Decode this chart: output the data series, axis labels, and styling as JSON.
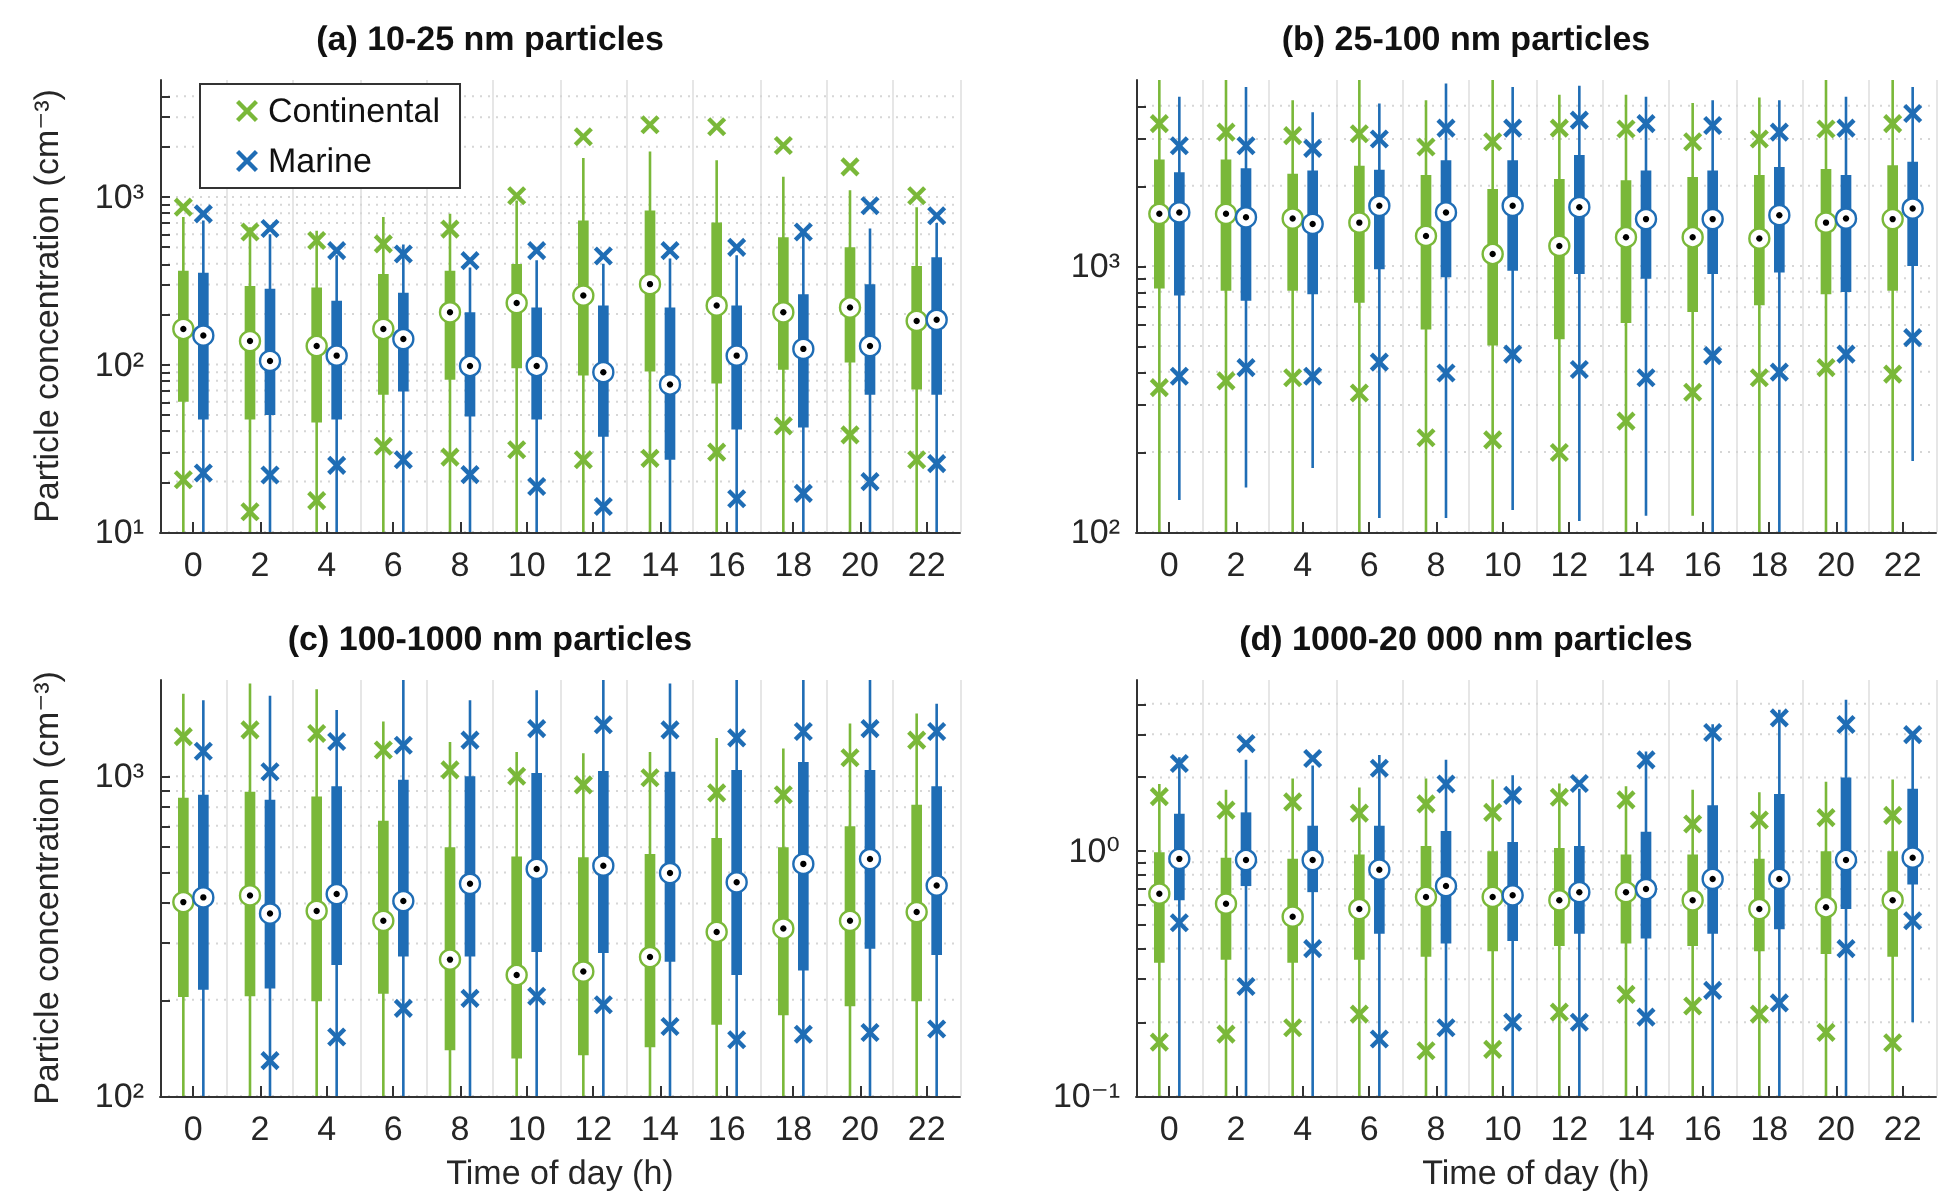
{
  "chart_data": [
    {
      "type": "box",
      "title": "(a) 10-25 nm particles",
      "ylabel": "Particle concentration (cm⁻³)",
      "categories": [
        "0",
        "2",
        "4",
        "6",
        "8",
        "10",
        "12",
        "14",
        "16",
        "18",
        "20",
        "22"
      ],
      "log": true,
      "grid": true,
      "legend": "top left",
      "marker": "cross",
      "ylim": [
        10,
        5000
      ],
      "yticks": [
        {
          "value": 10,
          "label": "10¹"
        },
        {
          "value": 20,
          "label": null
        },
        {
          "value": 30,
          "label": null
        },
        {
          "value": 40,
          "label": null
        },
        {
          "value": 50,
          "label": null
        },
        {
          "value": 60,
          "label": null
        },
        {
          "value": 70,
          "label": null
        },
        {
          "value": 80,
          "label": null
        },
        {
          "value": 90,
          "label": null
        },
        {
          "value": 100,
          "label": "10²"
        },
        {
          "value": 200,
          "label": null
        },
        {
          "value": 300,
          "label": null
        },
        {
          "value": 400,
          "label": null
        },
        {
          "value": 500,
          "label": null
        },
        {
          "value": 600,
          "label": null
        },
        {
          "value": 700,
          "label": null
        },
        {
          "value": 800,
          "label": null
        },
        {
          "value": 900,
          "label": null
        },
        {
          "value": 1000,
          "label": "10³"
        },
        {
          "value": 2000,
          "label": null
        },
        {
          "value": 3000,
          "label": null
        },
        {
          "value": 4000,
          "label": null
        }
      ],
      "series": [
        {
          "name": "Continental",
          "color": "#7ab839",
          "boxes": [
            {
              "low": 10,
              "q1": 60,
              "median": 163,
              "q3": 363,
              "high": 760,
              "outliers": [
                871,
                20.5
              ]
            },
            {
              "low": 10,
              "q1": 47,
              "median": 138,
              "q3": 294,
              "high": 660,
              "outliers": [
                619,
                13.2
              ]
            },
            {
              "low": 10,
              "q1": 45,
              "median": 129,
              "q3": 288,
              "high": 630,
              "outliers": [
                550,
                15.4
              ]
            },
            {
              "low": 10,
              "q1": 66,
              "median": 163,
              "q3": 347,
              "high": 760,
              "outliers": [
                525,
                32.5
              ]
            },
            {
              "low": 10,
              "q1": 81,
              "median": 205,
              "q3": 363,
              "high": 795,
              "outliers": [
                643,
                28
              ]
            },
            {
              "low": 10,
              "q1": 95,
              "median": 233,
              "q3": 398,
              "high": 955,
              "outliers": [
                1019,
                31
              ]
            },
            {
              "low": 10,
              "q1": 86,
              "median": 258,
              "q3": 724,
              "high": 1710,
              "outliers": [
                2291,
                27
              ]
            },
            {
              "low": 10,
              "q1": 91,
              "median": 302,
              "q3": 832,
              "high": 1870,
              "outliers": [
                2704,
                27.5
              ]
            },
            {
              "low": 10,
              "q1": 77,
              "median": 225,
              "q3": 705,
              "high": 1660,
              "outliers": [
                2630,
                30
              ]
            },
            {
              "low": 10,
              "q1": 93,
              "median": 205,
              "q3": 575,
              "high": 1320,
              "outliers": [
                2032,
                43
              ]
            },
            {
              "low": 10,
              "q1": 103,
              "median": 219,
              "q3": 501,
              "high": 1100,
              "outliers": [
                1514,
                38
              ]
            },
            {
              "low": 10,
              "q1": 71,
              "median": 182,
              "q3": 387,
              "high": 870,
              "outliers": [
                1019,
                27
              ]
            }
          ]
        },
        {
          "name": "Marine",
          "color": "#1f6db5",
          "boxes": [
            {
              "low": 10,
              "q1": 47,
              "median": 149,
              "q3": 353,
              "high": 725,
              "outliers": [
                794,
                22.5
              ]
            },
            {
              "low": 10,
              "q1": 50,
              "median": 105,
              "q3": 283,
              "high": 600,
              "outliers": [
                649,
                21.9
              ]
            },
            {
              "low": 10,
              "q1": 47,
              "median": 113,
              "q3": 240,
              "high": 450,
              "outliers": [
                479,
                25
              ]
            },
            {
              "low": 10,
              "q1": 69,
              "median": 142,
              "q3": 268,
              "high": 520,
              "outliers": [
                457,
                27
              ]
            },
            {
              "low": 10,
              "q1": 49,
              "median": 98,
              "q3": 205,
              "high": 380,
              "outliers": [
                417,
                22
              ]
            },
            {
              "low": 10,
              "q1": 47,
              "median": 98,
              "q3": 219,
              "high": 420,
              "outliers": [
                479,
                18.7
              ]
            },
            {
              "low": 10,
              "q1": 37,
              "median": 90,
              "q3": 225,
              "high": 400,
              "outliers": [
                445,
                14.2
              ]
            },
            {
              "low": 10,
              "q1": 27,
              "median": 76,
              "q3": 219,
              "high": 430,
              "outliers": [
                479
              ]
            },
            {
              "low": 10,
              "q1": 41,
              "median": 113,
              "q3": 225,
              "high": 450,
              "outliers": [
                501,
                15.8
              ]
            },
            {
              "low": 10,
              "q1": 42,
              "median": 124,
              "q3": 263,
              "high": 600,
              "outliers": [
                619,
                17
              ]
            },
            {
              "low": 10,
              "q1": 66,
              "median": 129,
              "q3": 302,
              "high": 650,
              "outliers": [
                887,
                20
              ]
            },
            {
              "low": 10,
              "q1": 66,
              "median": 185,
              "q3": 437,
              "high": 700,
              "outliers": [
                773,
                25.6
              ]
            }
          ]
        }
      ]
    },
    {
      "type": "box",
      "title": "(b) 25-100 nm particles",
      "categories": [
        "0",
        "2",
        "4",
        "6",
        "8",
        "10",
        "12",
        "14",
        "16",
        "18",
        "20",
        "22"
      ],
      "log": true,
      "grid": true,
      "marker": "cross",
      "ylim": [
        100,
        5000
      ],
      "yticks": [
        {
          "value": 100,
          "label": "10²"
        },
        {
          "value": 200,
          "label": null
        },
        {
          "value": 300,
          "label": null
        },
        {
          "value": 400,
          "label": null
        },
        {
          "value": 500,
          "label": null
        },
        {
          "value": 600,
          "label": null
        },
        {
          "value": 700,
          "label": null
        },
        {
          "value": 800,
          "label": null
        },
        {
          "value": 900,
          "label": null
        },
        {
          "value": 1000,
          "label": "10³"
        },
        {
          "value": 2000,
          "label": null
        },
        {
          "value": 3000,
          "label": null
        },
        {
          "value": 4000,
          "label": null
        }
      ],
      "series": [
        {
          "color": "#7ab839",
          "boxes": [
            {
              "low": 100,
              "q1": 822,
              "median": 1570,
              "q3": 2512,
              "high": 5000,
              "outliers": [
                3428,
                349
              ]
            },
            {
              "low": 100,
              "q1": 807,
              "median": 1570,
              "q3": 2512,
              "high": 5000,
              "outliers": [
                3184,
                370
              ]
            },
            {
              "low": 100,
              "q1": 807,
              "median": 1507,
              "q3": 2223,
              "high": 4200,
              "outliers": [
                3090,
                380
              ]
            },
            {
              "low": 100,
              "q1": 728,
              "median": 1455,
              "q3": 2382,
              "high": 5000,
              "outliers": [
                3141,
                333
              ]
            },
            {
              "low": 100,
              "q1": 577,
              "median": 1297,
              "q3": 2198,
              "high": 4200,
              "outliers": [
                2800,
                226
              ]
            },
            {
              "low": 100,
              "q1": 502,
              "median": 1109,
              "q3": 1945,
              "high": 5000,
              "outliers": [
                2931,
                222
              ]
            },
            {
              "low": 100,
              "q1": 530,
              "median": 1189,
              "q3": 2123,
              "high": 4400,
              "outliers": [
                3296,
                199
              ]
            },
            {
              "low": 100,
              "q1": 611,
              "median": 1282,
              "q3": 2099,
              "high": 4400,
              "outliers": [
                3273,
                261
              ]
            },
            {
              "low": 115,
              "q1": 671,
              "median": 1282,
              "q3": 2158,
              "high": 4100,
              "outliers": [
                2931,
                335
              ]
            },
            {
              "low": 100,
              "q1": 711,
              "median": 1268,
              "q3": 2198,
              "high": 4300,
              "outliers": [
                3000,
                380
              ]
            },
            {
              "low": 100,
              "q1": 783,
              "median": 1455,
              "q3": 2312,
              "high": 5000,
              "outliers": [
                3273,
                415
              ]
            },
            {
              "low": 100,
              "q1": 807,
              "median": 1500,
              "q3": 2393,
              "high": 5000,
              "outliers": [
                3428,
                392
              ]
            }
          ]
        },
        {
          "color": "#1f6db5",
          "boxes": [
            {
              "low": 132,
              "q1": 774,
              "median": 1589,
              "q3": 2249,
              "high": 4325,
              "outliers": [
                2831,
                385
              ]
            },
            {
              "low": 147,
              "q1": 740,
              "median": 1524,
              "q3": 2328,
              "high": 4710,
              "outliers": [
                2831,
                415
              ]
            },
            {
              "low": 174,
              "q1": 783,
              "median": 1439,
              "q3": 2286,
              "high": 3784,
              "outliers": [
                2767,
                385
              ]
            },
            {
              "low": 113,
              "q1": 971,
              "median": 1683,
              "q3": 2300,
              "high": 4083,
              "outliers": [
                3000,
                435
              ]
            },
            {
              "low": 113,
              "q1": 906,
              "median": 1589,
              "q3": 2495,
              "high": 4853,
              "outliers": [
                3296,
                396
              ]
            },
            {
              "low": 121,
              "q1": 959,
              "median": 1683,
              "q3": 2495,
              "high": 4710,
              "outliers": [
                3296,
                466
              ]
            },
            {
              "low": 110,
              "q1": 933,
              "median": 1663,
              "q3": 2612,
              "high": 4760,
              "outliers": [
                3532,
                408
              ]
            },
            {
              "low": 115,
              "q1": 895,
              "median": 1500,
              "q3": 2286,
              "high": 4325,
              "outliers": [
                3428,
                380
              ]
            },
            {
              "low": 100,
              "q1": 933,
              "median": 1500,
              "q3": 2286,
              "high": 4200,
              "outliers": [
                3373,
                460
              ]
            },
            {
              "low": 100,
              "q1": 944,
              "median": 1552,
              "q3": 2355,
              "high": 4200,
              "outliers": [
                3184,
                399
              ]
            },
            {
              "low": 100,
              "q1": 798,
              "median": 1507,
              "q3": 2198,
              "high": 4325,
              "outliers": [
                3296,
                466
              ]
            },
            {
              "low": 185,
              "q1": 1000,
              "median": 1644,
              "q3": 2466,
              "high": 4710,
              "outliers": [
                3741,
                538
              ]
            }
          ]
        }
      ]
    },
    {
      "type": "box",
      "title": "(c) 100-1000 nm particles",
      "xlabel": "Time of day (h)",
      "ylabel": "Particle concentration (cm⁻³)",
      "categories": [
        "0",
        "2",
        "4",
        "6",
        "8",
        "10",
        "12",
        "14",
        "16",
        "18",
        "20",
        "22"
      ],
      "log": true,
      "grid": true,
      "marker": "cross",
      "ylim": [
        100,
        2000
      ],
      "yticks": [
        {
          "value": 100,
          "label": "10²"
        },
        {
          "value": 200,
          "label": null
        },
        {
          "value": 300,
          "label": null
        },
        {
          "value": 400,
          "label": null
        },
        {
          "value": 500,
          "label": null
        },
        {
          "value": 600,
          "label": null
        },
        {
          "value": 700,
          "label": null
        },
        {
          "value": 800,
          "label": null
        },
        {
          "value": 900,
          "label": null
        },
        {
          "value": 1000,
          "label": "10³"
        }
      ],
      "series": [
        {
          "color": "#7ab839",
          "boxes": [
            {
              "low": 100,
              "q1": 204,
              "median": 404,
              "q3": 857,
              "high": 1811,
              "outliers": [
                1330
              ]
            },
            {
              "low": 100,
              "q1": 205,
              "median": 424,
              "q3": 895,
              "high": 1950,
              "outliers": [
                1396
              ]
            },
            {
              "low": 100,
              "q1": 198,
              "median": 379,
              "q3": 865,
              "high": 1870,
              "outliers": [
                1361
              ]
            },
            {
              "low": 100,
              "q1": 209,
              "median": 353,
              "q3": 726,
              "high": 1483,
              "outliers": [
                1208
              ]
            },
            {
              "low": 100,
              "q1": 139,
              "median": 267,
              "q3": 600,
              "high": 1279,
              "outliers": [
                1047
              ]
            },
            {
              "low": 100,
              "q1": 131,
              "median": 239,
              "q3": 561,
              "high": 1191,
              "outliers": [
                1000
              ]
            },
            {
              "low": 100,
              "q1": 134,
              "median": 245,
              "q3": 558,
              "high": 1180,
              "outliers": [
                940
              ]
            },
            {
              "low": 100,
              "q1": 142,
              "median": 272,
              "q3": 571,
              "high": 1191,
              "outliers": [
                989
              ]
            },
            {
              "low": 100,
              "q1": 167,
              "median": 326,
              "q3": 641,
              "high": 1318,
              "outliers": [
                887
              ]
            },
            {
              "low": 100,
              "q1": 179,
              "median": 334,
              "q3": 600,
              "high": 1222,
              "outliers": [
                875
              ]
            },
            {
              "low": 100,
              "q1": 191,
              "median": 353,
              "q3": 698,
              "high": 1462,
              "outliers": [
                1143
              ]
            },
            {
              "low": 100,
              "q1": 198,
              "median": 376,
              "q3": 815,
              "high": 1570,
              "outliers": [
                1297
              ]
            }
          ]
        },
        {
          "color": "#1f6db5",
          "boxes": [
            {
              "low": 100,
              "q1": 215,
              "median": 418,
              "q3": 875,
              "high": 1730,
              "outliers": [
                1197
              ]
            },
            {
              "low": 100,
              "q1": 217,
              "median": 372,
              "q3": 845,
              "high": 1786,
              "outliers": [
                1033,
                129
              ]
            },
            {
              "low": 100,
              "q1": 257,
              "median": 428,
              "q3": 931,
              "high": 1611,
              "outliers": [
                1285,
                153
              ]
            },
            {
              "low": 100,
              "q1": 273,
              "median": 407,
              "q3": 975,
              "high": 2000,
              "outliers": [
                1250,
                188
              ]
            },
            {
              "low": 100,
              "q1": 273,
              "median": 461,
              "q3": 1000,
              "high": 1730,
              "outliers": [
                1297,
                202
              ]
            },
            {
              "low": 100,
              "q1": 282,
              "median": 513,
              "q3": 1023,
              "high": 1858,
              "outliers": [
                1409,
                205
              ]
            },
            {
              "low": 100,
              "q1": 280,
              "median": 525,
              "q3": 1038,
              "high": 2000,
              "outliers": [
                1449,
                193
              ]
            },
            {
              "low": 100,
              "q1": 263,
              "median": 498,
              "q3": 1033,
              "high": 1950,
              "outliers": [
                1396,
                165
              ]
            },
            {
              "low": 100,
              "q1": 239,
              "median": 466,
              "q3": 1047,
              "high": 2000,
              "outliers": [
                1318,
                150
              ]
            },
            {
              "low": 100,
              "q1": 247,
              "median": 532,
              "q3": 1109,
              "high": 2000,
              "outliers": [
                1380,
                156
              ]
            },
            {
              "low": 100,
              "q1": 289,
              "median": 551,
              "q3": 1047,
              "high": 2000,
              "outliers": [
                1409,
                158
              ]
            },
            {
              "low": 100,
              "q1": 276,
              "median": 455,
              "q3": 931,
              "high": 1687,
              "outliers": [
                1380,
                162
              ]
            }
          ]
        }
      ]
    },
    {
      "type": "box",
      "title": "(d) 1000-20 000 nm particles",
      "xlabel": "Time of day (h)",
      "categories": [
        "0",
        "2",
        "4",
        "6",
        "8",
        "10",
        "12",
        "14",
        "16",
        "18",
        "20",
        "22"
      ],
      "log": true,
      "grid": true,
      "marker": "cross",
      "ylim": [
        0.1,
        5
      ],
      "yticks": [
        {
          "value": 0.1,
          "label": "10⁻¹"
        },
        {
          "value": 0.2,
          "label": null
        },
        {
          "value": 0.3,
          "label": null
        },
        {
          "value": 0.4,
          "label": null
        },
        {
          "value": 0.5,
          "label": null
        },
        {
          "value": 0.6,
          "label": null
        },
        {
          "value": 0.7,
          "label": null
        },
        {
          "value": 0.8,
          "label": null
        },
        {
          "value": 0.9,
          "label": null
        },
        {
          "value": 1,
          "label": "10⁰"
        },
        {
          "value": 2,
          "label": null
        },
        {
          "value": 3,
          "label": null
        },
        {
          "value": 4,
          "label": null
        }
      ],
      "series": [
        {
          "color": "#7ab839",
          "boxes": [
            {
              "low": 0.1,
              "q1": 0.35,
              "median": 0.67,
              "q3": 0.99,
              "high": 1.88,
              "outliers": [
                1.67,
                0.166
              ]
            },
            {
              "low": 0.1,
              "q1": 0.36,
              "median": 0.61,
              "q3": 0.94,
              "high": 1.78,
              "outliers": [
                1.47,
                0.179
              ]
            },
            {
              "low": 0.1,
              "q1": 0.35,
              "median": 0.54,
              "q3": 0.93,
              "high": 1.98,
              "outliers": [
                1.59,
                0.19
              ]
            },
            {
              "low": 0.1,
              "q1": 0.36,
              "median": 0.58,
              "q3": 0.97,
              "high": 1.82,
              "outliers": [
                1.43,
                0.216
              ]
            },
            {
              "low": 0.1,
              "q1": 0.37,
              "median": 0.65,
              "q3": 1.05,
              "high": 1.98,
              "outliers": [
                1.56,
                0.153
              ]
            },
            {
              "low": 0.1,
              "q1": 0.39,
              "median": 0.65,
              "q3": 1.0,
              "high": 1.96,
              "outliers": [
                1.44,
                0.155
              ]
            },
            {
              "low": 0.1,
              "q1": 0.41,
              "median": 0.63,
              "q3": 1.03,
              "high": 1.89,
              "outliers": [
                1.66,
                0.22
              ]
            },
            {
              "low": 0.1,
              "q1": 0.42,
              "median": 0.68,
              "q3": 0.97,
              "high": 1.84,
              "outliers": [
                1.62,
                0.26
              ]
            },
            {
              "low": 0.1,
              "q1": 0.41,
              "median": 0.63,
              "q3": 0.97,
              "high": 1.78,
              "outliers": [
                1.29,
                0.233
              ]
            },
            {
              "low": 0.1,
              "q1": 0.39,
              "median": 0.58,
              "q3": 0.93,
              "high": 1.74,
              "outliers": [
                1.34,
                0.216
              ]
            },
            {
              "low": 0.1,
              "q1": 0.38,
              "median": 0.59,
              "q3": 1.0,
              "high": 1.92,
              "outliers": [
                1.37,
                0.182
              ]
            },
            {
              "low": 0.1,
              "q1": 0.37,
              "median": 0.63,
              "q3": 1.0,
              "high": 1.96,
              "outliers": [
                1.4,
                0.165
              ]
            }
          ]
        },
        {
          "color": "#1f6db5",
          "boxes": [
            {
              "low": 0.1,
              "q1": 0.63,
              "median": 0.93,
              "q3": 1.42,
              "high": 2.42,
              "outliers": [
                2.28,
                0.51
              ]
            },
            {
              "low": 0.1,
              "q1": 0.72,
              "median": 0.92,
              "q3": 1.44,
              "high": 2.36,
              "outliers": [
                2.75,
                0.28
              ]
            },
            {
              "low": 0.1,
              "q1": 0.68,
              "median": 0.92,
              "q3": 1.27,
              "high": 2.24,
              "outliers": [
                2.39,
                0.4
              ]
            },
            {
              "low": 0.1,
              "q1": 0.46,
              "median": 0.84,
              "q3": 1.27,
              "high": 2.47,
              "outliers": [
                2.18,
                0.171
              ]
            },
            {
              "low": 0.1,
              "q1": 0.42,
              "median": 0.72,
              "q3": 1.21,
              "high": 2.36,
              "outliers": [
                1.88,
                0.19
              ]
            },
            {
              "low": 0.1,
              "q1": 0.43,
              "median": 0.66,
              "q3": 1.09,
              "high": 2.04,
              "outliers": [
                1.69,
                0.2
              ]
            },
            {
              "low": 0.1,
              "q1": 0.46,
              "median": 0.68,
              "q3": 1.05,
              "high": 1.8,
              "outliers": [
                1.89,
                0.2
              ]
            },
            {
              "low": 0.1,
              "q1": 0.44,
              "median": 0.7,
              "q3": 1.2,
              "high": 2.55,
              "outliers": [
                2.36,
                0.21
              ]
            },
            {
              "low": 0.1,
              "q1": 0.46,
              "median": 0.77,
              "q3": 1.54,
              "high": 3.3,
              "outliers": [
                3.05,
                0.27
              ]
            },
            {
              "low": 0.1,
              "q1": 0.48,
              "median": 0.77,
              "q3": 1.71,
              "high": 3.78,
              "outliers": [
                3.5,
                0.24
              ]
            },
            {
              "low": 0.1,
              "q1": 0.58,
              "median": 0.92,
              "q3": 2.0,
              "high": 4.15,
              "outliers": [
                3.29,
                0.4
              ]
            },
            {
              "low": 0.2,
              "q1": 0.73,
              "median": 0.94,
              "q3": 1.8,
              "high": 2.9,
              "outliers": [
                2.99,
                0.52
              ]
            }
          ]
        }
      ]
    }
  ]
}
